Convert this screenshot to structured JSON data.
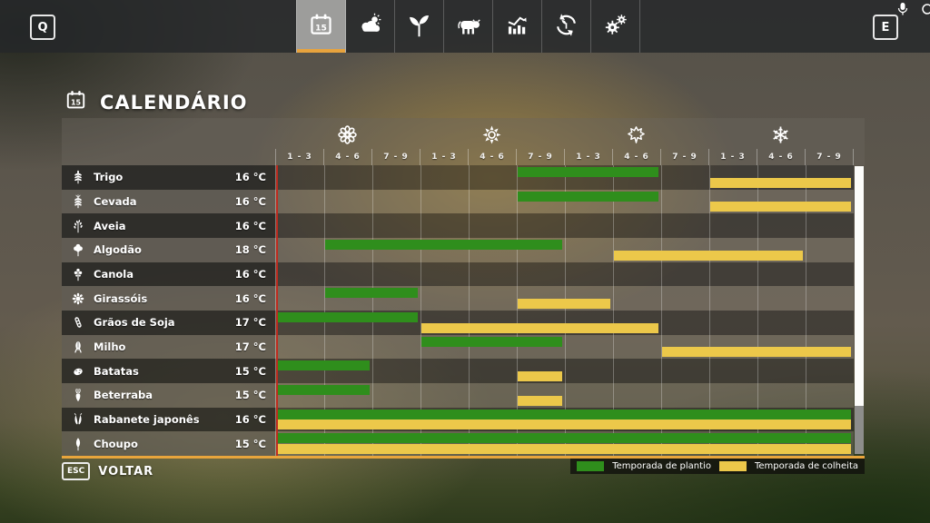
{
  "topbar": {
    "left_key": "Q",
    "right_key": "E",
    "tabs": [
      {
        "id": "calendar",
        "icon": "calendar-icon",
        "selected": true
      },
      {
        "id": "weather",
        "icon": "weather-icon",
        "selected": false
      },
      {
        "id": "crops",
        "icon": "seedling-icon",
        "selected": false
      },
      {
        "id": "animals",
        "icon": "cow-icon",
        "selected": false
      },
      {
        "id": "statistics",
        "icon": "stats-icon",
        "selected": false
      },
      {
        "id": "production-cycles",
        "icon": "cycle-icon",
        "selected": false
      },
      {
        "id": "settings",
        "icon": "gears-icon",
        "selected": false
      }
    ]
  },
  "header": {
    "title": "CALENDÁRIO"
  },
  "calendar": {
    "seasons": [
      {
        "name": "spring",
        "icon": "flower-icon",
        "months": [
          "1 - 3",
          "4 - 6",
          "7 - 9"
        ]
      },
      {
        "name": "summer",
        "icon": "sun-icon",
        "months": [
          "1 - 3",
          "4 - 6",
          "7 - 9"
        ]
      },
      {
        "name": "autumn",
        "icon": "maple-leaf-icon",
        "months": [
          "1 - 3",
          "4 - 6",
          "7 - 9"
        ]
      },
      {
        "name": "winter",
        "icon": "snowflake-icon",
        "months": [
          "1 - 3",
          "4 - 6",
          "7 - 9"
        ]
      }
    ],
    "total_columns": 12,
    "current_time_marker_column": 1,
    "rows": [
      {
        "icon": "wheat-icon",
        "name": "Trigo",
        "temp": "16 °C",
        "plant": [
          [
            6,
            8
          ]
        ],
        "harvest": [
          [
            10,
            12
          ]
        ]
      },
      {
        "icon": "barley-icon",
        "name": "Cevada",
        "temp": "16 °C",
        "plant": [
          [
            6,
            8
          ]
        ],
        "harvest": [
          [
            10,
            12
          ]
        ]
      },
      {
        "icon": "oat-icon",
        "name": "Aveia",
        "temp": "16 °C",
        "plant": [],
        "harvest": []
      },
      {
        "icon": "cotton-icon",
        "name": "Algodão",
        "temp": "18 °C",
        "plant": [
          [
            2,
            6
          ]
        ],
        "harvest": [
          [
            8,
            11
          ]
        ]
      },
      {
        "icon": "canola-icon",
        "name": "Canola",
        "temp": "16 °C",
        "plant": [],
        "harvest": []
      },
      {
        "icon": "sunflower-icon",
        "name": "Girassóis",
        "temp": "16 °C",
        "plant": [
          [
            2,
            3
          ]
        ],
        "harvest": [
          [
            6,
            7
          ]
        ]
      },
      {
        "icon": "soybean-icon",
        "name": "Grãos de Soja",
        "temp": "17 °C",
        "plant": [
          [
            1,
            3
          ]
        ],
        "harvest": [
          [
            4,
            8
          ]
        ]
      },
      {
        "icon": "corn-icon",
        "name": "Milho",
        "temp": "17 °C",
        "plant": [
          [
            4,
            6
          ]
        ],
        "harvest": [
          [
            9,
            12
          ]
        ]
      },
      {
        "icon": "potato-icon",
        "name": "Batatas",
        "temp": "15 °C",
        "plant": [
          [
            1,
            2
          ]
        ],
        "harvest": [
          [
            6,
            6
          ]
        ]
      },
      {
        "icon": "sugar-beet-icon",
        "name": "Beterraba",
        "temp": "15 °C",
        "plant": [
          [
            1,
            2
          ]
        ],
        "harvest": [
          [
            6,
            6
          ]
        ]
      },
      {
        "icon": "radish-icon",
        "name": "Rabanete japonês",
        "temp": "16 °C",
        "plant": [
          [
            1,
            12
          ]
        ],
        "harvest": [
          [
            1,
            12
          ]
        ]
      },
      {
        "icon": "poplar-icon",
        "name": "Choupo",
        "temp": "15 °C",
        "plant": [
          [
            1,
            12
          ]
        ],
        "harvest": [
          [
            1,
            12
          ]
        ]
      }
    ],
    "colors": {
      "plant": "#2f8e1c",
      "harvest": "#ecc84a",
      "marker": "#c1281c",
      "accent": "#e8a33d"
    }
  },
  "legend": {
    "plant_label": "Temporada de plantio",
    "harvest_label": "Temporada de colheita"
  },
  "footer": {
    "key_label": "ESC",
    "back_label": "VOLTAR"
  }
}
